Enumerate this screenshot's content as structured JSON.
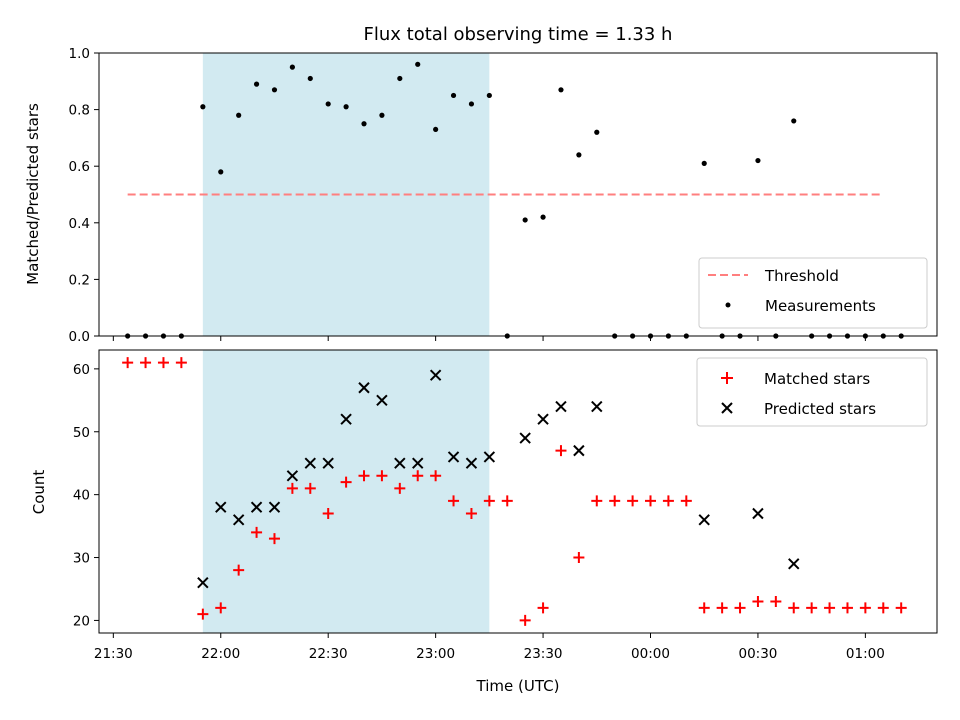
{
  "chart_data": {
    "type": "scatter",
    "title": "Flux total observing time = 1.33 h",
    "xlabel": "Time (UTC)",
    "x_ticks": [
      "21:30",
      "22:00",
      "22:30",
      "23:00",
      "23:30",
      "00:00",
      "00:30",
      "01:00"
    ],
    "x_range": [
      "21:26",
      "01:20"
    ],
    "shaded_interval": [
      "21:55",
      "23:15"
    ],
    "colors": {
      "shade": "#add8e6",
      "threshold": "#ff7f7f",
      "measurement": "#000000",
      "matched": "#ff0000",
      "predicted": "#000000"
    },
    "top": {
      "ylabel": "Matched/Predicted stars",
      "ylim": [
        0,
        1.0
      ],
      "y_ticks": [
        "0.0",
        "0.2",
        "0.4",
        "0.6",
        "0.8",
        "1.0"
      ],
      "legend": {
        "position": "lower-right",
        "entries": [
          "Threshold",
          "Measurements"
        ]
      },
      "threshold": {
        "name": "Threshold",
        "y": 0.5,
        "x_start": "21:34",
        "x_end": "01:05"
      },
      "measurements": {
        "name": "Measurements",
        "points": [
          [
            "21:34",
            0.0
          ],
          [
            "21:39",
            0.0
          ],
          [
            "21:44",
            0.0
          ],
          [
            "21:49",
            0.0
          ],
          [
            "21:55",
            0.81
          ],
          [
            "22:00",
            0.58
          ],
          [
            "22:05",
            0.78
          ],
          [
            "22:10",
            0.89
          ],
          [
            "22:15",
            0.87
          ],
          [
            "22:20",
            0.95
          ],
          [
            "22:25",
            0.91
          ],
          [
            "22:30",
            0.82
          ],
          [
            "22:35",
            0.81
          ],
          [
            "22:40",
            0.75
          ],
          [
            "22:45",
            0.78
          ],
          [
            "22:50",
            0.91
          ],
          [
            "22:55",
            0.96
          ],
          [
            "23:00",
            0.73
          ],
          [
            "23:05",
            0.85
          ],
          [
            "23:10",
            0.82
          ],
          [
            "23:15",
            0.85
          ],
          [
            "23:20",
            0.0
          ],
          [
            "23:25",
            0.41
          ],
          [
            "23:30",
            0.42
          ],
          [
            "23:35",
            0.87
          ],
          [
            "23:40",
            0.64
          ],
          [
            "23:45",
            0.72
          ],
          [
            "23:50",
            0.0
          ],
          [
            "23:55",
            0.0
          ],
          [
            "00:00",
            0.0
          ],
          [
            "00:05",
            0.0
          ],
          [
            "00:10",
            0.0
          ],
          [
            "00:15",
            0.61
          ],
          [
            "00:20",
            0.0
          ],
          [
            "00:25",
            0.0
          ],
          [
            "00:30",
            0.62
          ],
          [
            "00:35",
            0.0
          ],
          [
            "00:40",
            0.76
          ],
          [
            "00:45",
            0.0
          ],
          [
            "00:50",
            0.0
          ],
          [
            "00:55",
            0.0
          ],
          [
            "01:00",
            0.0
          ],
          [
            "01:05",
            0.0
          ],
          [
            "01:10",
            0.0
          ]
        ]
      }
    },
    "bottom": {
      "ylabel": "Count",
      "ylim": [
        18,
        63
      ],
      "y_ticks": [
        "20",
        "30",
        "40",
        "50",
        "60"
      ],
      "legend": {
        "position": "upper-right",
        "entries": [
          "Matched stars",
          "Predicted stars"
        ]
      },
      "matched": {
        "name": "Matched stars",
        "points": [
          [
            "21:34",
            61
          ],
          [
            "21:39",
            61
          ],
          [
            "21:44",
            61
          ],
          [
            "21:49",
            61
          ],
          [
            "21:55",
            21
          ],
          [
            "22:00",
            22
          ],
          [
            "22:05",
            28
          ],
          [
            "22:10",
            34
          ],
          [
            "22:15",
            33
          ],
          [
            "22:20",
            41
          ],
          [
            "22:25",
            41
          ],
          [
            "22:30",
            37
          ],
          [
            "22:35",
            42
          ],
          [
            "22:40",
            43
          ],
          [
            "22:45",
            43
          ],
          [
            "22:50",
            41
          ],
          [
            "22:55",
            43
          ],
          [
            "23:00",
            43
          ],
          [
            "23:05",
            39
          ],
          [
            "23:10",
            37
          ],
          [
            "23:15",
            39
          ],
          [
            "23:20",
            39
          ],
          [
            "23:25",
            20
          ],
          [
            "23:30",
            22
          ],
          [
            "23:35",
            47
          ],
          [
            "23:40",
            30
          ],
          [
            "23:45",
            39
          ],
          [
            "23:50",
            39
          ],
          [
            "23:55",
            39
          ],
          [
            "00:00",
            39
          ],
          [
            "00:05",
            39
          ],
          [
            "00:10",
            39
          ],
          [
            "00:15",
            22
          ],
          [
            "00:20",
            22
          ],
          [
            "00:25",
            22
          ],
          [
            "00:30",
            23
          ],
          [
            "00:35",
            23
          ],
          [
            "00:40",
            22
          ],
          [
            "00:45",
            22
          ],
          [
            "00:50",
            22
          ],
          [
            "00:55",
            22
          ],
          [
            "01:00",
            22
          ],
          [
            "01:05",
            22
          ],
          [
            "01:10",
            22
          ]
        ]
      },
      "predicted": {
        "name": "Predicted stars",
        "points": [
          [
            "21:55",
            26
          ],
          [
            "22:00",
            38
          ],
          [
            "22:05",
            36
          ],
          [
            "22:10",
            38
          ],
          [
            "22:15",
            38
          ],
          [
            "22:20",
            43
          ],
          [
            "22:25",
            45
          ],
          [
            "22:30",
            45
          ],
          [
            "22:35",
            52
          ],
          [
            "22:40",
            57
          ],
          [
            "22:45",
            55
          ],
          [
            "22:50",
            45
          ],
          [
            "22:55",
            45
          ],
          [
            "23:00",
            59
          ],
          [
            "23:05",
            46
          ],
          [
            "23:10",
            45
          ],
          [
            "23:15",
            46
          ],
          [
            "23:25",
            49
          ],
          [
            "23:30",
            52
          ],
          [
            "23:35",
            54
          ],
          [
            "23:40",
            47
          ],
          [
            "23:45",
            54
          ],
          [
            "00:15",
            36
          ],
          [
            "00:30",
            37
          ],
          [
            "00:40",
            29
          ]
        ]
      }
    }
  }
}
